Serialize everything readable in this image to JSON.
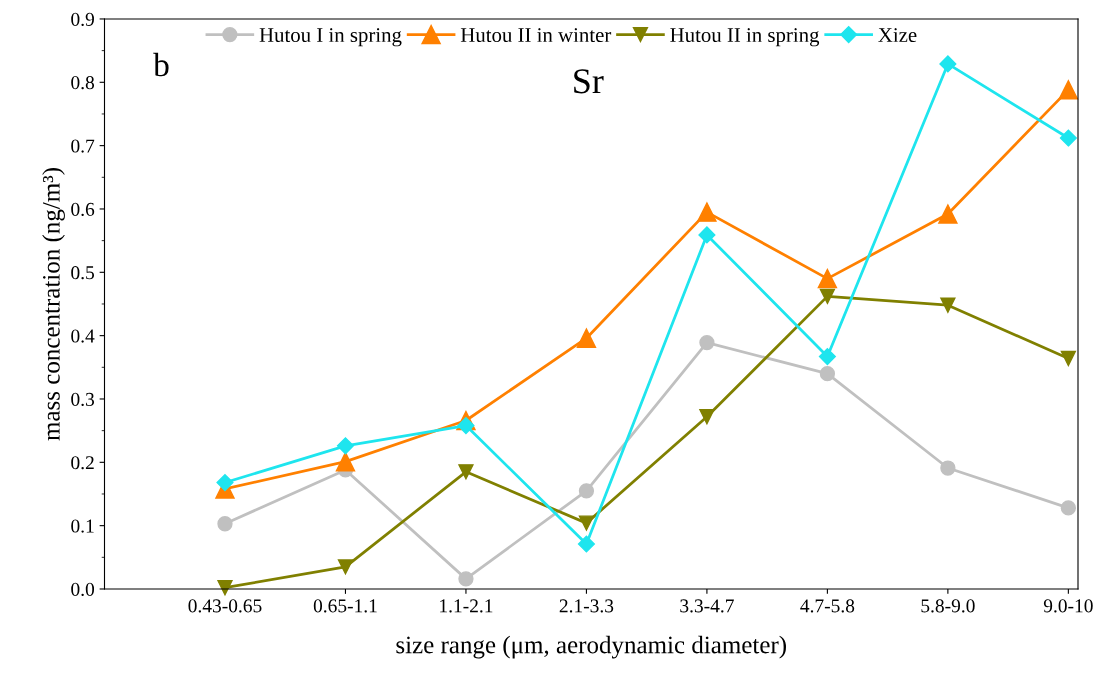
{
  "chart_data": {
    "type": "line",
    "xlabel": "size range (μm, aerodynamic diameter)",
    "ylabel": "mass concentration (ng/m³)",
    "annotations": [
      "b",
      "Sr"
    ],
    "categories": [
      "0.43-0.65",
      "0.65-1.1",
      "1.1-2.1",
      "2.1-3.3",
      "3.3-4.7",
      "4.7-5.8",
      "5.8-9.0",
      "9.0-10"
    ],
    "series": [
      {
        "name": "Hutou I in spring",
        "color": "#c0c0c0",
        "marker": "circle",
        "values": [
          0.103,
          0.188,
          0.016,
          0.155,
          0.389,
          0.34,
          0.191,
          0.128
        ]
      },
      {
        "name": "Hutou II in winter",
        "color": "#ff8000",
        "marker": "triangle",
        "values": [
          0.158,
          0.201,
          0.266,
          0.396,
          0.595,
          0.49,
          0.592,
          0.788
        ]
      },
      {
        "name": "Hutou II in spring",
        "color": "#808000",
        "marker": "triangle_down",
        "values": [
          0.002,
          0.035,
          0.185,
          0.104,
          0.272,
          0.462,
          0.448,
          0.364
        ]
      },
      {
        "name": "Xize",
        "color": "#1ee5ee",
        "marker": "diamond",
        "values": [
          0.168,
          0.226,
          0.258,
          0.071,
          0.559,
          0.367,
          0.829,
          0.712
        ]
      }
    ],
    "ylim": [
      0,
      0.9
    ],
    "yticks": [
      {
        "value": 0,
        "label": "0.0"
      },
      0.1,
      0.2,
      0.3,
      0.4,
      0.5,
      0.6,
      0.7,
      0.8,
      0.9
    ],
    "grid": false,
    "legend": "top",
    "line_style": "solid"
  }
}
